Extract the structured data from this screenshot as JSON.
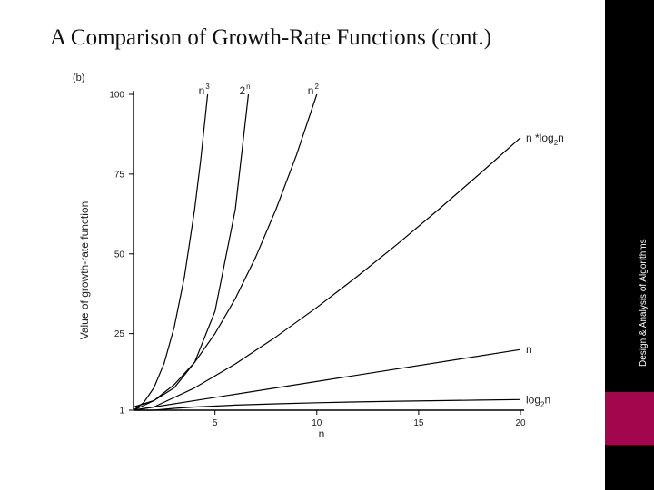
{
  "slide": {
    "title": "A Comparison of Growth-Rate Functions (cont.)",
    "sidebar_text": "Design & Analysis of Algorithms",
    "sidebar_color": "#000000",
    "accent_color": "#a3064c"
  },
  "chart_data": {
    "type": "line",
    "panel_label": "(b)",
    "xlabel": "n",
    "ylabel": "Value of growth-rate function",
    "xlim": [
      1,
      20
    ],
    "ylim": [
      1,
      100
    ],
    "x_ticks": [
      5,
      10,
      15,
      20
    ],
    "y_ticks": [
      1,
      25,
      50,
      75,
      100
    ],
    "grid": false,
    "series": [
      {
        "name": "2",
        "superscript": "n",
        "x": [
          1,
          2,
          3,
          4,
          5,
          6,
          6.64
        ],
        "y": [
          2,
          4,
          8,
          16,
          32,
          64,
          100
        ]
      },
      {
        "name": "n",
        "superscript": "3",
        "x": [
          1,
          1.5,
          2,
          2.5,
          3,
          3.5,
          4,
          4.3,
          4.64
        ],
        "y": [
          1,
          3.4,
          8,
          15.6,
          27,
          42.9,
          64,
          79.5,
          100
        ]
      },
      {
        "name": "n",
        "superscript": "2",
        "x": [
          1,
          2,
          3,
          4,
          5,
          6,
          7,
          8,
          9,
          10
        ],
        "y": [
          1,
          4,
          9,
          16,
          25,
          36,
          49,
          64,
          81,
          100
        ]
      },
      {
        "name": "n *log",
        "subscript": "2",
        "suffix": "n",
        "x": [
          1,
          2,
          4,
          6,
          8,
          10,
          12,
          14,
          16,
          18,
          20
        ],
        "y": [
          1,
          2,
          8,
          15.5,
          24,
          33.2,
          43,
          53.3,
          64,
          75.1,
          86.4
        ]
      },
      {
        "name": "n",
        "x": [
          1,
          20
        ],
        "y": [
          1,
          20
        ]
      },
      {
        "name": "log",
        "subscript": "2",
        "suffix": "n",
        "x": [
          1,
          2,
          3,
          4,
          6,
          8,
          10,
          12,
          14,
          16,
          18,
          20
        ],
        "y": [
          1,
          1,
          1.58,
          2,
          2.58,
          3,
          3.32,
          3.58,
          3.81,
          4,
          4.17,
          4.32
        ]
      }
    ]
  }
}
